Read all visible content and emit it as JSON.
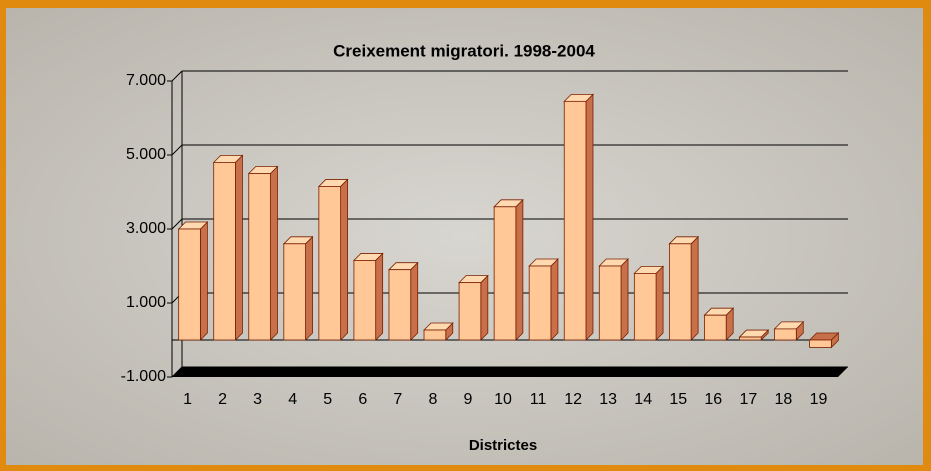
{
  "chart_data": {
    "type": "bar3d",
    "title": "Creixement migratori. 1998-2004",
    "x_label": "Districtes",
    "categories": [
      "1",
      "2",
      "3",
      "4",
      "5",
      "6",
      "7",
      "8",
      "9",
      "10",
      "11",
      "12",
      "13",
      "14",
      "15",
      "16",
      "17",
      "18",
      "19"
    ],
    "values": [
      3000,
      4800,
      4500,
      2600,
      4150,
      2150,
      1900,
      270,
      1550,
      3600,
      2000,
      6450,
      2000,
      1800,
      2600,
      670,
      80,
      300,
      -200
    ],
    "color": "#ffc896",
    "ylim": [
      -1000,
      7000
    ],
    "yticks": [
      {
        "value": -1000,
        "label": "-1.000"
      },
      {
        "value": 1000,
        "label": "1.000"
      },
      {
        "value": 3000,
        "label": "3.000"
      },
      {
        "value": 5000,
        "label": "5.000"
      },
      {
        "value": 7000,
        "label": "7.000"
      }
    ],
    "grid": true
  }
}
